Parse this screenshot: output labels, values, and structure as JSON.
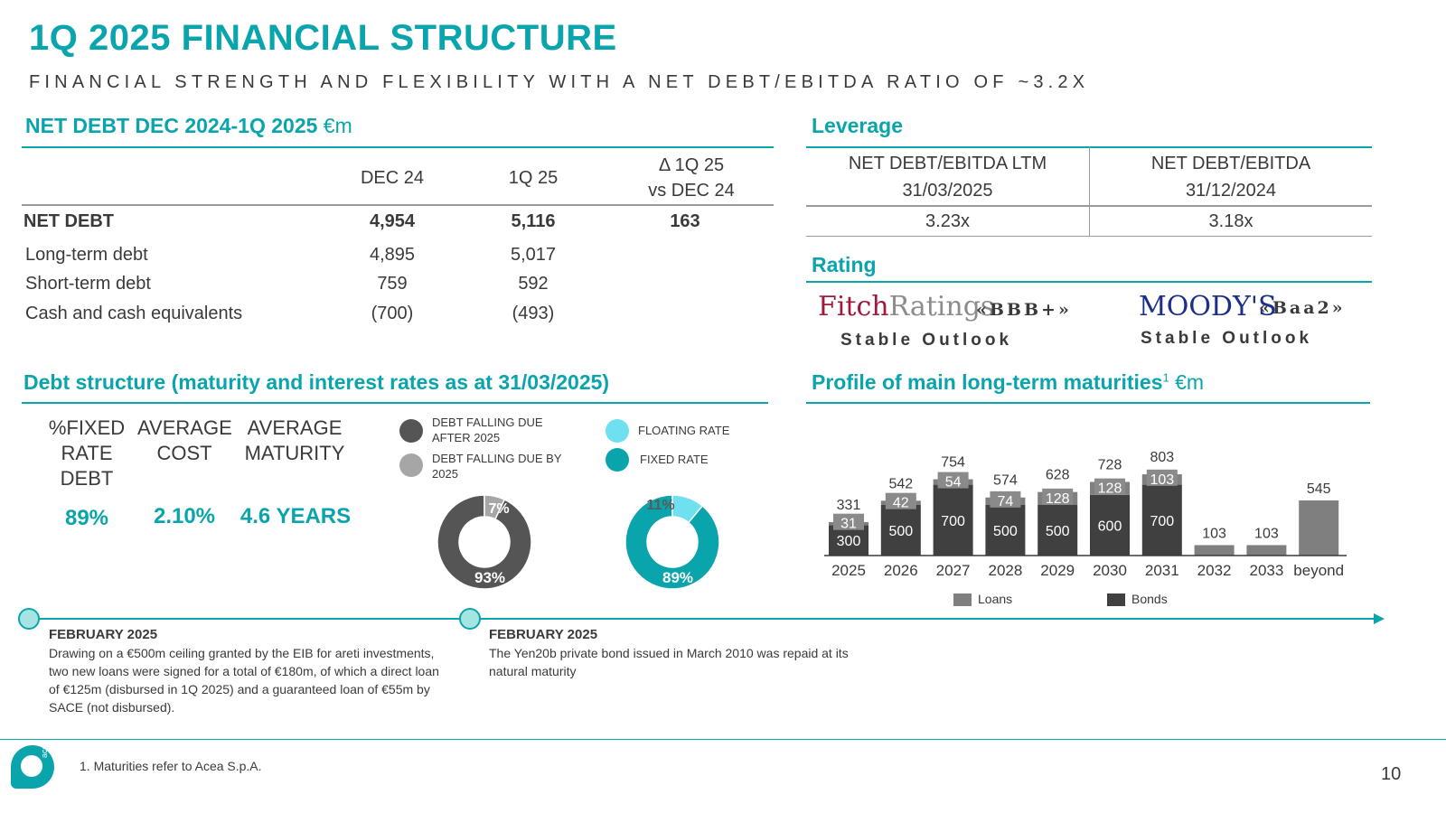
{
  "header": {
    "title": "1Q 2025 FINANCIAL STRUCTURE",
    "subtitle": "FINANCIAL STRENGTH AND FLEXIBILITY WITH A NET DEBT/EBITDA RATIO OF ~3.2X"
  },
  "net_debt": {
    "heading": "NET DEBT DEC 2024-1Q 2025",
    "unit": "€m",
    "columns": [
      "DEC 24",
      "1Q 25",
      "Δ 1Q 25",
      "vs DEC 24"
    ],
    "rows": [
      {
        "label": "NET DEBT",
        "dec24": "4,954",
        "q125": "5,116",
        "delta": "163"
      },
      {
        "label": "Long-term debt",
        "dec24": "4,895",
        "q125": "5,017",
        "delta": ""
      },
      {
        "label": "Short-term debt",
        "dec24": "759",
        "q125": "592",
        "delta": ""
      },
      {
        "label": "Cash and cash equivalents",
        "dec24": "(700)",
        "q125": "(493)",
        "delta": ""
      }
    ]
  },
  "leverage": {
    "heading": "Leverage",
    "col1_line1": "NET DEBT/EBITDA LTM",
    "col1_line2": "31/03/2025",
    "col2_line1": "NET DEBT/EBITDA",
    "col2_line2": "31/12/2024",
    "val1": "3.23x",
    "val2": "3.18x"
  },
  "rating": {
    "heading": "Rating",
    "fitch_logo_a": "Fitch",
    "fitch_logo_b": "Ratings",
    "fitch_value": "«BBB+»",
    "fitch_outlook": "Stable Outlook",
    "moodys_logo": "MOODY'S",
    "moodys_value": "«Baa2»",
    "moodys_outlook": "Stable Outlook"
  },
  "debt_structure": {
    "heading": "Debt structure (maturity and interest rates as at 31/03/2025)",
    "kpis": [
      {
        "label": "%FIXED RATE DEBT",
        "value": "89%"
      },
      {
        "label": "AVERAGE COST",
        "value": "2.10%"
      },
      {
        "label": "AVERAGE MATURITY",
        "value": "4.6 YEARS"
      }
    ],
    "legend_due_after": "DEBT FALLING DUE AFTER 2025",
    "legend_due_by": "DEBT FALLING DUE BY 2025",
    "legend_floating": "FLOATING RATE",
    "legend_fixed": "FIXED RATE",
    "donut1": {
      "after_pct": 93,
      "by_pct": 7,
      "after_label": "93%",
      "by_label": "7%",
      "color_after": "#555555",
      "color_by": "#a6a6a6"
    },
    "donut2": {
      "fixed_pct": 89,
      "floating_pct": 11,
      "fixed_label": "89%",
      "floating_label": "11%",
      "color_fixed": "#0aa5ac",
      "color_floating": "#6fe0f0"
    }
  },
  "maturities": {
    "heading": "Profile of main long-term maturities",
    "superscript": "1",
    "unit": "€m",
    "legend_loans": "Loans",
    "legend_bonds": "Bonds"
  },
  "chart_data": {
    "type": "bar",
    "stacked": true,
    "categories": [
      "2025",
      "2026",
      "2027",
      "2028",
      "2029",
      "2030",
      "2031",
      "2032",
      "2033",
      "beyond"
    ],
    "series": [
      {
        "name": "Bonds",
        "color": "#404040",
        "values": [
          300,
          500,
          700,
          500,
          500,
          600,
          700,
          0,
          0,
          0
        ]
      },
      {
        "name": "Loans",
        "color": "#7f7f7f",
        "values": [
          31,
          42,
          54,
          74,
          128,
          128,
          103,
          103,
          103,
          545
        ]
      }
    ],
    "totals": [
      331,
      542,
      754,
      574,
      628,
      728,
      803,
      103,
      103,
      545
    ],
    "title": "Profile of main long-term maturities",
    "legend": "bottom",
    "grid": false
  },
  "timeline": [
    {
      "head": "FEBRUARY 2025",
      "body": "Drawing on a €500m ceiling granted by the EIB for areti investments, two new loans were signed for a total of €180m, of which a direct loan of €125m (disbursed in 1Q 2025) and a guaranteed loan of €55m by SACE (not disbursed)."
    },
    {
      "head": "FEBRUARY 2025",
      "body": "The Yen20b private bond issued in March 2010 was repaid at its natural maturity"
    }
  ],
  "footer": {
    "logo_text": "acea",
    "footnote": "1. Maturities refer to Acea S.p.A.",
    "page_number": "10"
  }
}
